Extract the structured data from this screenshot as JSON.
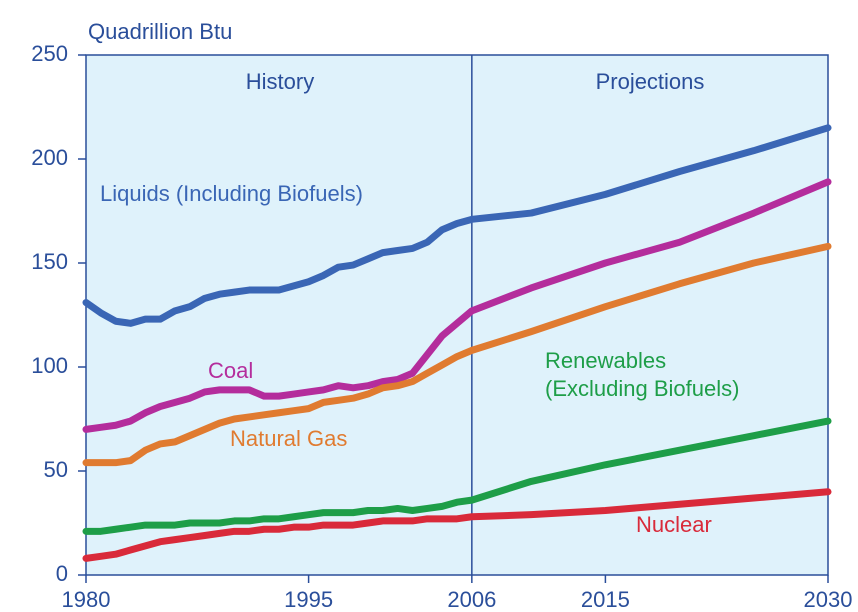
{
  "chart_data": {
    "type": "line",
    "y_label": "Quadrillion Btu",
    "annotations": [
      "History",
      "Projections"
    ],
    "divider": 2006,
    "x": [
      1980,
      1981,
      1982,
      1983,
      1984,
      1985,
      1986,
      1987,
      1988,
      1989,
      1990,
      1991,
      1992,
      1993,
      1994,
      1995,
      1996,
      1997,
      1998,
      1999,
      2000,
      2001,
      2002,
      2003,
      2004,
      2005,
      2006,
      2010,
      2015,
      2020,
      2025,
      2030
    ],
    "series": [
      {
        "name": "Liquids (Including Biofuels)",
        "color": "#3a66b5",
        "values": [
          131,
          126,
          122,
          121,
          123,
          123,
          127,
          129,
          133,
          135,
          136,
          137,
          137,
          137,
          139,
          141,
          144,
          148,
          149,
          152,
          155,
          156,
          157,
          160,
          166,
          169,
          171,
          174,
          183,
          194,
          204,
          215
        ]
      },
      {
        "name": "Coal",
        "color": "#b42d9c",
        "values": [
          70,
          71,
          72,
          74,
          78,
          81,
          83,
          85,
          88,
          89,
          89,
          89,
          86,
          86,
          87,
          88,
          89,
          91,
          90,
          91,
          93,
          94,
          97,
          106,
          115,
          121,
          127,
          138,
          150,
          160,
          174,
          189
        ]
      },
      {
        "name": "Natural Gas",
        "color": "#e07b30",
        "values": [
          54,
          54,
          54,
          55,
          60,
          63,
          64,
          67,
          70,
          73,
          75,
          76,
          77,
          78,
          79,
          80,
          83,
          84,
          85,
          87,
          90,
          91,
          93,
          97,
          101,
          105,
          108,
          117,
          129,
          140,
          150,
          158
        ]
      },
      {
        "name": "Renewables (Excluding Biofuels)",
        "color": "#1e9e48",
        "values": [
          21,
          21,
          22,
          23,
          24,
          24,
          24,
          25,
          25,
          25,
          26,
          26,
          27,
          27,
          28,
          29,
          30,
          30,
          30,
          31,
          31,
          32,
          31,
          32,
          33,
          35,
          36,
          45,
          53,
          60,
          67,
          74
        ]
      },
      {
        "name": "Nuclear",
        "color": "#d92a3a",
        "values": [
          8,
          9,
          10,
          12,
          14,
          16,
          17,
          18,
          19,
          20,
          21,
          21,
          22,
          22,
          23,
          23,
          24,
          24,
          24,
          25,
          26,
          26,
          26,
          27,
          27,
          27,
          28,
          29,
          31,
          34,
          37,
          40
        ]
      }
    ],
    "xlim": [
      1980,
      2030
    ],
    "xticks": [
      1980,
      1995,
      2006,
      2015,
      2030
    ],
    "ylim": [
      0,
      250
    ],
    "yticks": [
      0,
      50,
      100,
      150,
      200,
      250
    ]
  }
}
